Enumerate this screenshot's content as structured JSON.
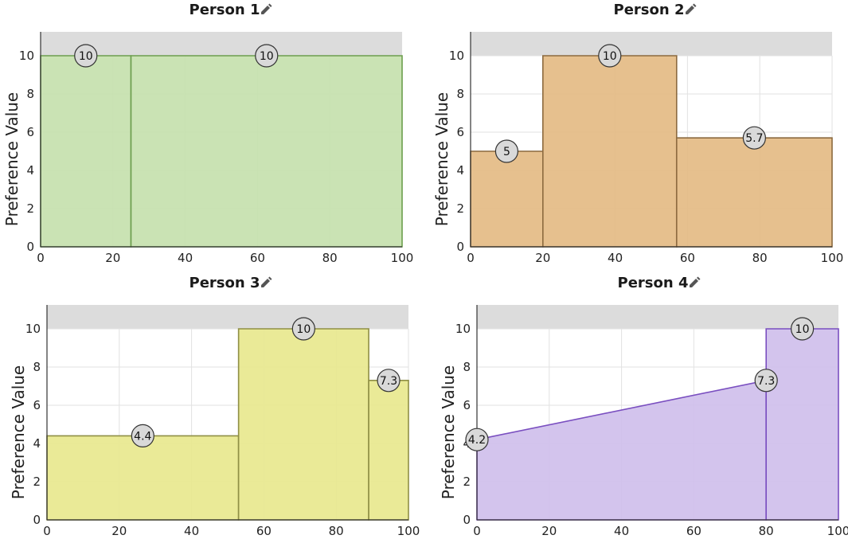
{
  "chart_data": [
    {
      "type": "area",
      "title": "Person 1",
      "ylabel": "Preference Value",
      "xlim": [
        0,
        100
      ],
      "ylim": [
        0,
        10
      ],
      "xticks": [
        "0",
        "20",
        "40",
        "60",
        "80",
        "100"
      ],
      "yticks": [
        "0",
        "2",
        "4",
        "6",
        "8",
        "10"
      ],
      "color": "#c5e1ae",
      "stroke": "#6d9e4e",
      "segments": [
        {
          "x0": 0,
          "x1": 25,
          "y0": 10,
          "y1": 10,
          "label": "10"
        },
        {
          "x0": 25,
          "x1": 100,
          "y0": 10,
          "y1": 10,
          "label": "10"
        }
      ]
    },
    {
      "type": "area",
      "title": "Person 2",
      "ylabel": "Preference Value",
      "xlim": [
        0,
        100
      ],
      "ylim": [
        0,
        10
      ],
      "xticks": [
        "0",
        "20",
        "40",
        "60",
        "80",
        "100"
      ],
      "yticks": [
        "0",
        "2",
        "4",
        "6",
        "8",
        "10"
      ],
      "color": "#e4bb84",
      "stroke": "#8c6a3f",
      "segments": [
        {
          "x0": 0,
          "x1": 20,
          "y0": 5,
          "y1": 5,
          "label": "5"
        },
        {
          "x0": 20,
          "x1": 57,
          "y0": 10,
          "y1": 10,
          "label": "10"
        },
        {
          "x0": 57,
          "x1": 100,
          "y0": 5.7,
          "y1": 5.7,
          "label": "5.7"
        }
      ]
    },
    {
      "type": "area",
      "title": "Person 3",
      "ylabel": "Preference Value",
      "xlim": [
        0,
        100
      ],
      "ylim": [
        0,
        10
      ],
      "xticks": [
        "0",
        "20",
        "40",
        "60",
        "80",
        "100"
      ],
      "yticks": [
        "0",
        "2",
        "4",
        "6",
        "8",
        "10"
      ],
      "color": "#e8e88e",
      "stroke": "#8f8f45",
      "segments": [
        {
          "x0": 0,
          "x1": 53,
          "y0": 4.4,
          "y1": 4.4,
          "label": "4.4"
        },
        {
          "x0": 53,
          "x1": 89,
          "y0": 10,
          "y1": 10,
          "label": "10"
        },
        {
          "x0": 89,
          "x1": 100,
          "y0": 7.3,
          "y1": 7.3,
          "label": "7.3"
        }
      ]
    },
    {
      "type": "area",
      "title": "Person 4",
      "ylabel": "Preference Value",
      "xlim": [
        0,
        100
      ],
      "ylim": [
        0,
        10
      ],
      "xticks": [
        "0",
        "20",
        "40",
        "60",
        "80",
        "100"
      ],
      "yticks": [
        "0",
        "2",
        "4",
        "6",
        "8",
        "10"
      ],
      "color": "#cfbfeb",
      "stroke": "#7a4fc0",
      "segments": [
        {
          "x0": 0,
          "x1": 80,
          "y0": 4.2,
          "y1": 7.3,
          "labels": [
            {
              "x": 0,
              "y": 4.2,
              "text": "4.2"
            },
            {
              "x": 80,
              "y": 7.3,
              "text": "7.3"
            }
          ]
        },
        {
          "x0": 80,
          "x1": 100,
          "y0": 10,
          "y1": 10,
          "label": "10"
        }
      ]
    }
  ],
  "colors": {
    "grid": "#e2e2e2",
    "band": "#dcdcdc",
    "label_circle": "#d9d9d9",
    "label_stroke": "#333333",
    "edit_icon": "#555555"
  },
  "icons": {
    "title_edit": "pencil-icon"
  }
}
